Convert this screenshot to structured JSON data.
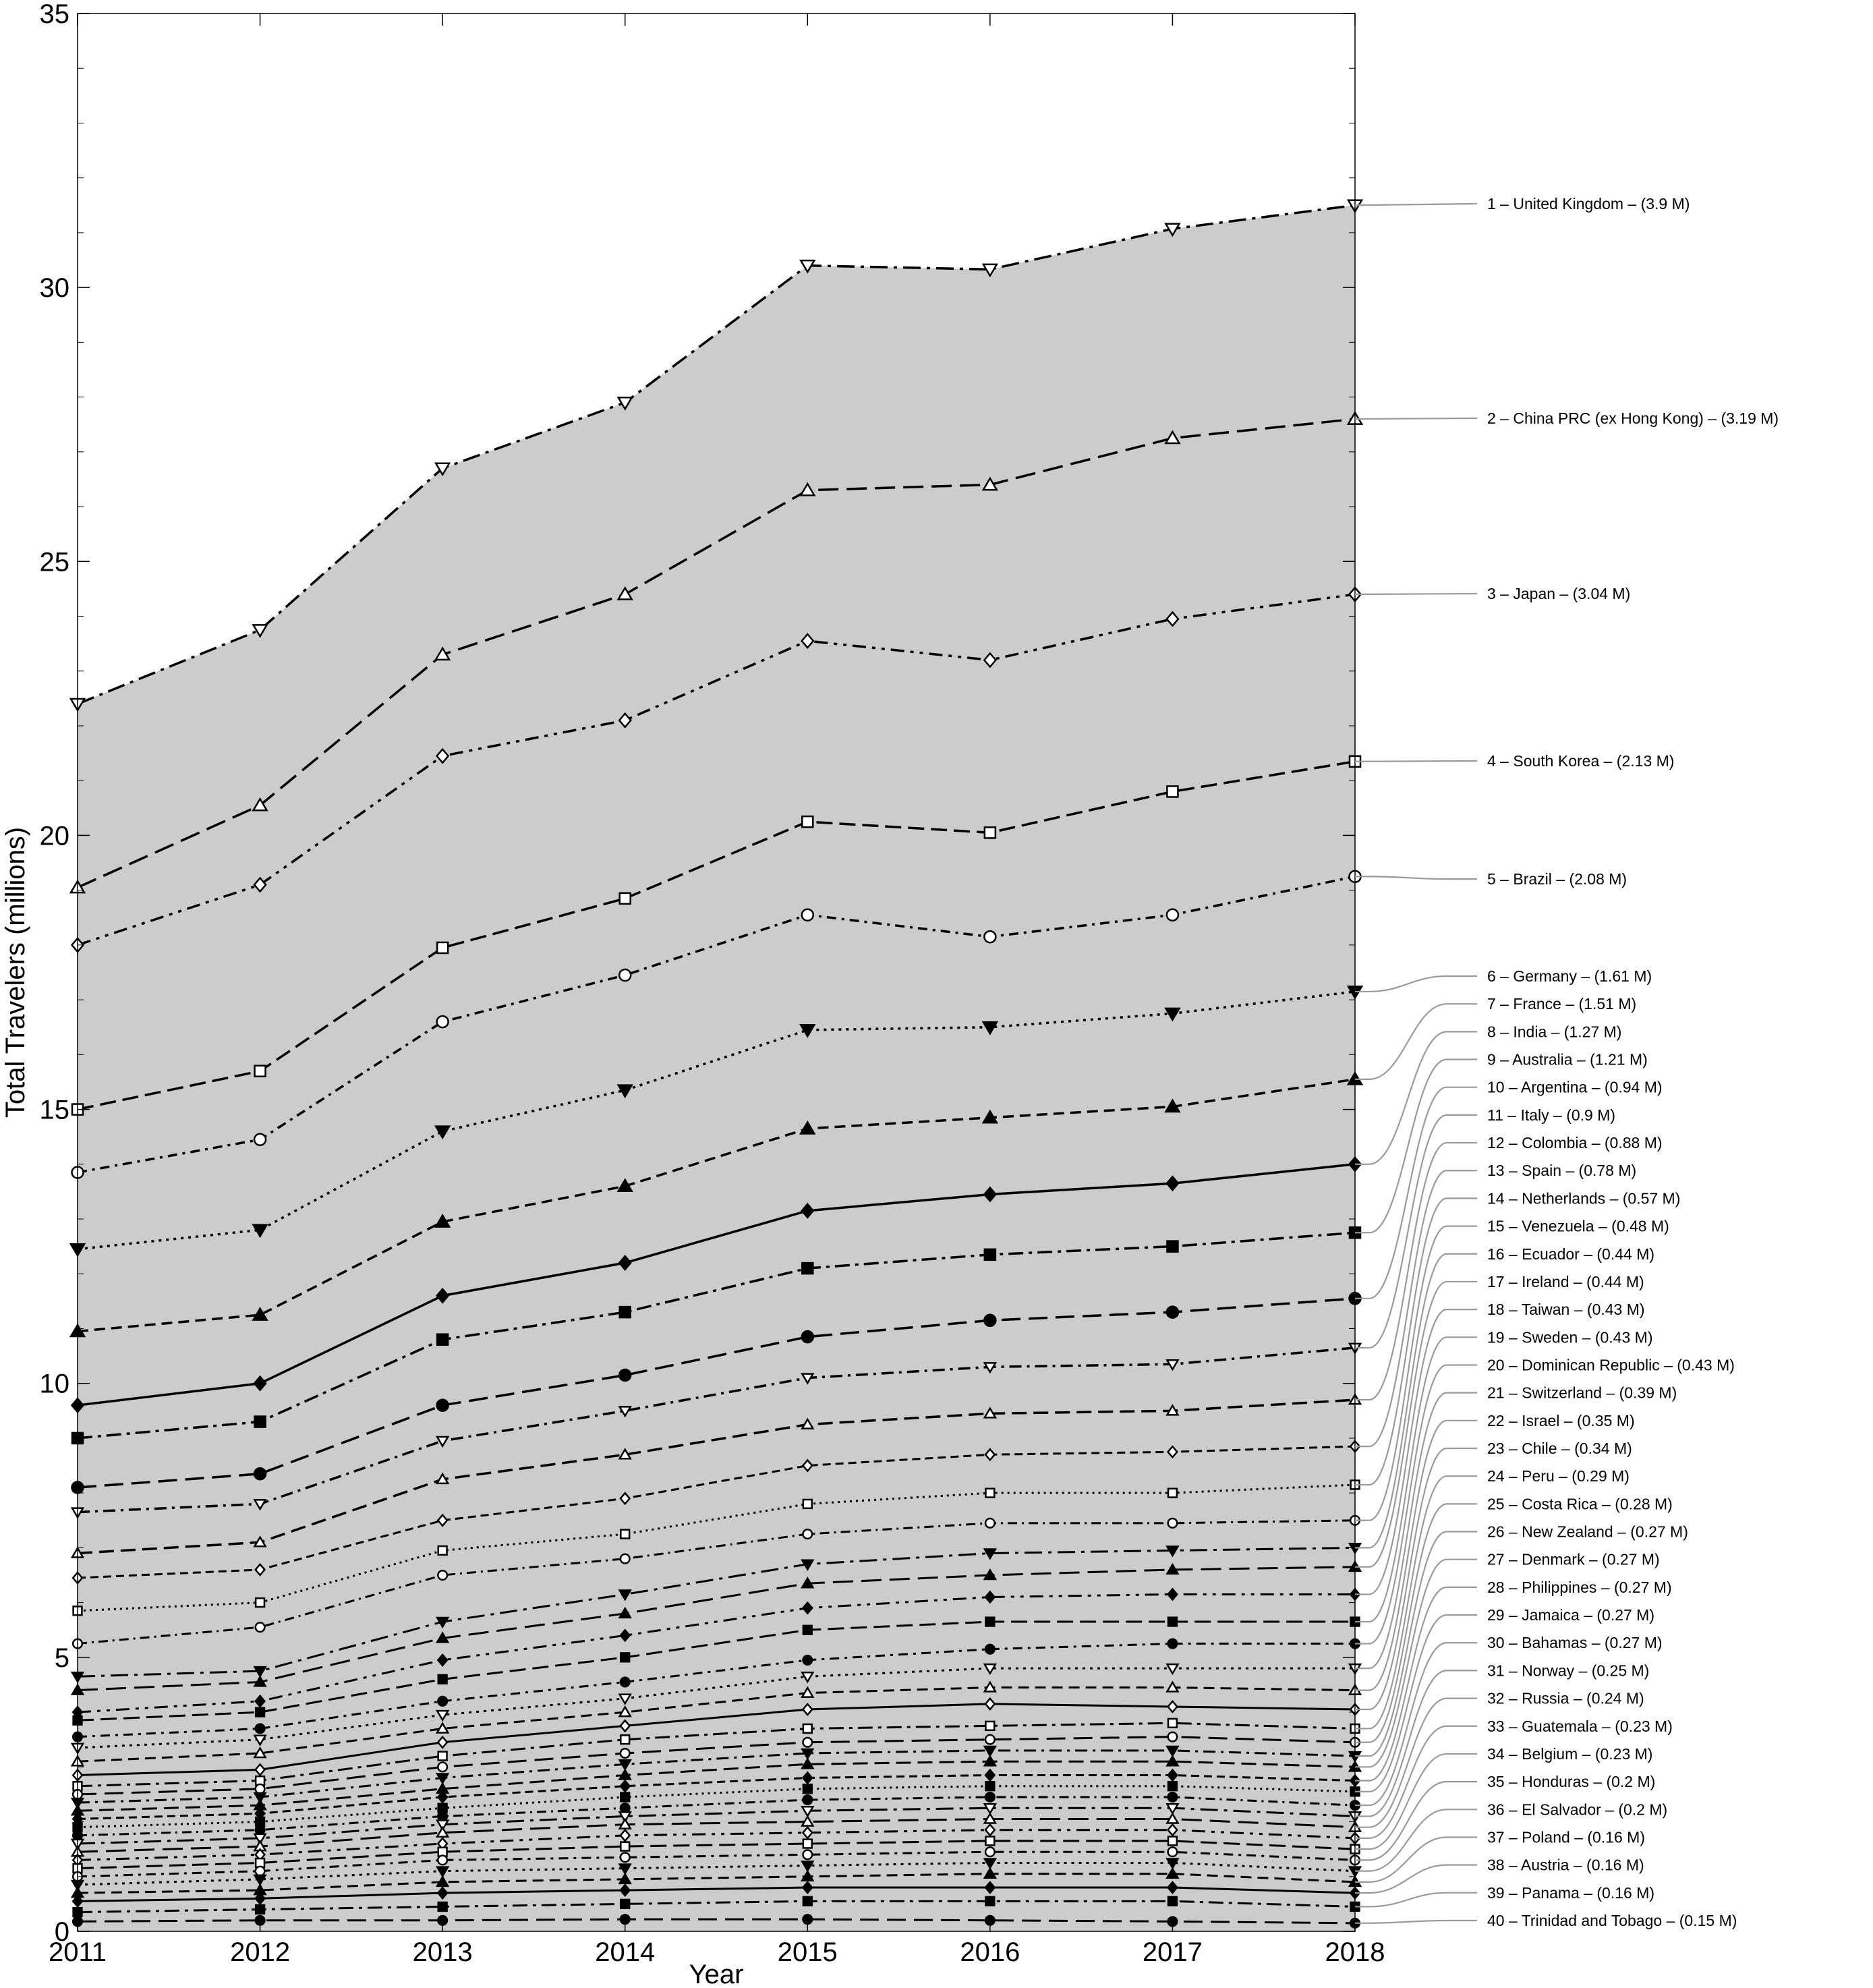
{
  "chart_data": {
    "type": "line",
    "title": "",
    "xlabel": "Year",
    "ylabel": "Total Travelers (millions)",
    "x": [
      2011,
      2012,
      2013,
      2014,
      2015,
      2016,
      2017,
      2018
    ],
    "ylim": [
      0,
      35
    ],
    "yticks": [
      0,
      5,
      10,
      15,
      20,
      25,
      30,
      35
    ],
    "stacked": true,
    "grid": false,
    "area_fill_color": "#cccccc",
    "line_color": "#000000",
    "legend_line_color": "#9a9a9a",
    "legend_placement": "right",
    "cumulative_series": [
      {
        "name": "1 – United Kingdom – (3.9 M)",
        "values": [
          22.4,
          23.75,
          26.7,
          27.9,
          30.4,
          30.33,
          31.07,
          31.5
        ]
      },
      {
        "name": "2 – China PRC (ex Hong Kong) – (3.19 M)",
        "values": [
          19.05,
          20.55,
          23.3,
          24.4,
          26.3,
          26.4,
          27.25,
          27.6
        ]
      },
      {
        "name": "3 – Japan – (3.04 M)",
        "values": [
          18.0,
          19.1,
          21.45,
          22.1,
          23.55,
          23.2,
          23.95,
          24.4
        ]
      },
      {
        "name": "4 – South Korea – (2.13 M)",
        "values": [
          15.0,
          15.7,
          17.95,
          18.85,
          20.25,
          20.05,
          20.8,
          21.35
        ]
      },
      {
        "name": "5 – Brazil – (2.08 M)",
        "values": [
          13.85,
          14.45,
          16.6,
          17.45,
          18.55,
          18.15,
          18.55,
          19.25
        ]
      },
      {
        "name": "6 – Germany – (1.61 M)",
        "values": [
          12.45,
          12.8,
          14.6,
          15.35,
          16.45,
          16.5,
          16.75,
          17.15
        ]
      },
      {
        "name": "7 – France – (1.51 M)",
        "values": [
          10.95,
          11.25,
          12.95,
          13.6,
          14.65,
          14.85,
          15.05,
          15.55
        ]
      },
      {
        "name": "8 – India – (1.27 M)",
        "values": [
          9.6,
          10.0,
          11.6,
          12.2,
          13.15,
          13.45,
          13.65,
          14.0
        ]
      },
      {
        "name": "9 – Australia – (1.21 M)",
        "values": [
          9.0,
          9.3,
          10.8,
          11.3,
          12.1,
          12.35,
          12.5,
          12.75
        ]
      },
      {
        "name": "10 – Argentina – (0.94 M)",
        "values": [
          8.1,
          8.35,
          9.6,
          10.15,
          10.85,
          11.15,
          11.3,
          11.55
        ]
      },
      {
        "name": "11 – Italy – (0.9 M)",
        "values": [
          7.65,
          7.8,
          8.95,
          9.5,
          10.1,
          10.3,
          10.35,
          10.65
        ]
      },
      {
        "name": "12 – Colombia – (0.88 M)",
        "values": [
          6.9,
          7.1,
          8.25,
          8.7,
          9.25,
          9.45,
          9.5,
          9.7
        ]
      },
      {
        "name": "13 – Spain – (0.78 M)",
        "values": [
          6.45,
          6.6,
          7.5,
          7.9,
          8.5,
          8.7,
          8.75,
          8.85
        ]
      },
      {
        "name": "14 – Netherlands – (0.57 M)",
        "values": [
          5.85,
          6.0,
          6.95,
          7.25,
          7.8,
          8.0,
          8.0,
          8.15
        ]
      },
      {
        "name": "15 – Venezuela – (0.48 M)",
        "values": [
          5.25,
          5.55,
          6.5,
          6.8,
          7.25,
          7.45,
          7.45,
          7.5
        ]
      },
      {
        "name": "16 – Ecuador – (0.44 M)",
        "values": [
          4.65,
          4.75,
          5.65,
          6.15,
          6.7,
          6.9,
          6.95,
          7.0
        ]
      },
      {
        "name": "17 – Ireland – (0.44 M)",
        "values": [
          4.4,
          4.55,
          5.35,
          5.8,
          6.35,
          6.5,
          6.6,
          6.65
        ]
      },
      {
        "name": "18 – Taiwan – (0.43 M)",
        "values": [
          4.0,
          4.2,
          4.95,
          5.4,
          5.9,
          6.1,
          6.15,
          6.15
        ]
      },
      {
        "name": "19 – Sweden – (0.43 M)",
        "values": [
          3.85,
          4.0,
          4.6,
          5.0,
          5.5,
          5.65,
          5.65,
          5.65
        ]
      },
      {
        "name": "20 – Dominican Republic – (0.43 M)",
        "values": [
          3.55,
          3.7,
          4.2,
          4.55,
          4.95,
          5.15,
          5.25,
          5.25
        ]
      },
      {
        "name": "21 – Switzerland – (0.39 M)",
        "values": [
          3.35,
          3.5,
          3.95,
          4.25,
          4.65,
          4.8,
          4.8,
          4.8
        ]
      },
      {
        "name": "22 – Israel – (0.35 M)",
        "values": [
          3.1,
          3.25,
          3.7,
          4.0,
          4.35,
          4.45,
          4.45,
          4.4
        ]
      },
      {
        "name": "23 – Chile – (0.34 M)",
        "values": [
          2.85,
          2.95,
          3.45,
          3.75,
          4.05,
          4.15,
          4.1,
          4.05
        ]
      },
      {
        "name": "24 – Peru – (0.29 M)",
        "values": [
          2.65,
          2.75,
          3.2,
          3.5,
          3.7,
          3.75,
          3.8,
          3.7
        ]
      },
      {
        "name": "25 – Costa Rica – (0.28 M)",
        "values": [
          2.5,
          2.6,
          3.0,
          3.25,
          3.45,
          3.5,
          3.55,
          3.45
        ]
      },
      {
        "name": "26 – New Zealand – (0.27 M)",
        "values": [
          2.35,
          2.45,
          2.8,
          3.05,
          3.25,
          3.3,
          3.3,
          3.2
        ]
      },
      {
        "name": "27 – Denmark – (0.27 M)",
        "values": [
          2.2,
          2.3,
          2.6,
          2.85,
          3.05,
          3.1,
          3.1,
          3.0
        ]
      },
      {
        "name": "28 – Philippines – (0.27 M)",
        "values": [
          2.05,
          2.15,
          2.45,
          2.65,
          2.8,
          2.85,
          2.85,
          2.75
        ]
      },
      {
        "name": "29 – Jamaica – (0.27 M)",
        "values": [
          1.9,
          2.0,
          2.25,
          2.45,
          2.6,
          2.65,
          2.65,
          2.55
        ]
      },
      {
        "name": "30 – Bahamas – (0.27 M)",
        "values": [
          1.75,
          1.85,
          2.1,
          2.25,
          2.4,
          2.45,
          2.45,
          2.3
        ]
      },
      {
        "name": "31 – Norway – (0.25 M)",
        "values": [
          1.6,
          1.7,
          1.95,
          2.1,
          2.2,
          2.25,
          2.25,
          2.1
        ]
      },
      {
        "name": "32 – Russia – (0.24 M)",
        "values": [
          1.45,
          1.55,
          1.8,
          1.95,
          2.0,
          2.05,
          2.05,
          1.9
        ]
      },
      {
        "name": "33 – Guatemala – (0.23 M)",
        "values": [
          1.3,
          1.4,
          1.6,
          1.75,
          1.8,
          1.85,
          1.85,
          1.7
        ]
      },
      {
        "name": "34 – Belgium – (0.23 M)",
        "values": [
          1.15,
          1.25,
          1.45,
          1.55,
          1.6,
          1.65,
          1.65,
          1.5
        ]
      },
      {
        "name": "35 – Honduras – (0.2 M)",
        "values": [
          1.0,
          1.1,
          1.3,
          1.35,
          1.4,
          1.45,
          1.45,
          1.3
        ]
      },
      {
        "name": "36 – El Salvador – (0.2 M)",
        "values": [
          0.85,
          0.95,
          1.1,
          1.15,
          1.2,
          1.25,
          1.25,
          1.1
        ]
      },
      {
        "name": "37 – Poland – (0.16 M)",
        "values": [
          0.7,
          0.75,
          0.9,
          0.95,
          1.0,
          1.05,
          1.05,
          0.9
        ]
      },
      {
        "name": "38 – Austria – (0.16 M)",
        "values": [
          0.55,
          0.6,
          0.7,
          0.75,
          0.8,
          0.8,
          0.8,
          0.7
        ]
      },
      {
        "name": "39 – Panama – (0.16 M)",
        "values": [
          0.35,
          0.4,
          0.45,
          0.5,
          0.55,
          0.55,
          0.55,
          0.45
        ]
      },
      {
        "name": "40 – Trinidad and Tobago – (0.15 M)",
        "values": [
          0.18,
          0.2,
          0.2,
          0.22,
          0.22,
          0.2,
          0.18,
          0.15
        ]
      }
    ]
  }
}
